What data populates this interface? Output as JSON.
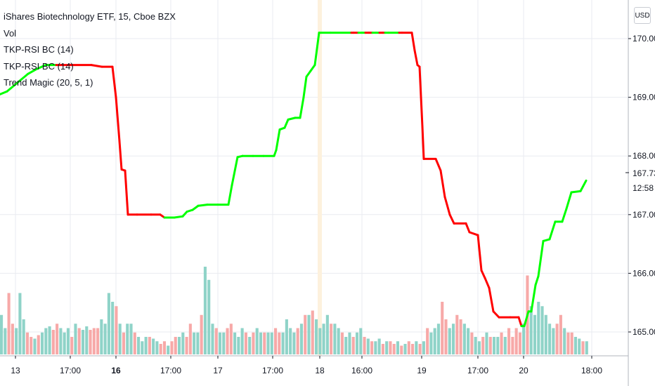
{
  "legend": {
    "title": "iShares Biotechnology ETF, 15, Cboe BZX",
    "vol": "Vol",
    "ind1": "TKP-RSI BC (14)",
    "ind2": "TKP-RSI BC (14)",
    "ind3": "Trend Magic (20, 5, 1)"
  },
  "currency": "USD",
  "price_label": {
    "value": "167.73",
    "countdown": "12:58"
  },
  "colors": {
    "up": "#00ff00",
    "down": "#ff0000",
    "vol_up": "#8fd3c8",
    "vol_down": "#f7a9a8",
    "grid": "#e9ebf0",
    "highlight": "#fdf1dd"
  },
  "chart_data": {
    "type": "line",
    "ylim": [
      164.55,
      170.5
    ],
    "y_ticks": [
      "170.00",
      "169.00",
      "168.00",
      "167.00",
      "166.00",
      "165.00"
    ],
    "x_ticks": [
      {
        "label": "13",
        "bold": false
      },
      {
        "label": "17:00",
        "bold": false
      },
      {
        "label": "16",
        "bold": true
      },
      {
        "label": "17:00",
        "bold": false
      },
      {
        "label": "17",
        "bold": false
      },
      {
        "label": "17:00",
        "bold": false
      },
      {
        "label": "18",
        "bold": false
      },
      {
        "label": "16:00",
        "bold": false
      },
      {
        "label": "19",
        "bold": false
      },
      {
        "label": "17:00",
        "bold": false
      },
      {
        "label": "20",
        "bold": false
      },
      {
        "label": "18:00",
        "bold": false
      }
    ],
    "series": [
      {
        "points": [
          [
            0,
            169.05,
            "up"
          ],
          [
            10,
            169.1,
            "up"
          ],
          [
            20,
            169.2,
            "up"
          ],
          [
            30,
            169.3,
            "up"
          ],
          [
            40,
            169.4,
            "up"
          ],
          [
            52,
            169.48,
            "up"
          ],
          [
            65,
            169.55,
            "up"
          ],
          [
            80,
            169.55,
            "up"
          ],
          [
            100,
            169.55,
            "down"
          ],
          [
            130,
            169.55,
            "down"
          ],
          [
            145,
            169.52,
            "down"
          ],
          [
            160,
            169.52,
            "down"
          ],
          [
            165,
            169.0,
            "down"
          ],
          [
            170,
            168.25,
            "down"
          ],
          [
            173,
            167.77,
            "down"
          ],
          [
            178,
            167.75,
            "down"
          ],
          [
            182,
            167.0,
            "down"
          ],
          [
            195,
            167.0,
            "down"
          ],
          [
            215,
            167.0,
            "down"
          ],
          [
            228,
            167.0,
            "down"
          ],
          [
            234,
            166.95,
            "down"
          ],
          [
            248,
            166.95,
            "up"
          ],
          [
            260,
            166.97,
            "up"
          ],
          [
            266,
            167.05,
            "up"
          ],
          [
            274,
            167.08,
            "up"
          ],
          [
            282,
            167.15,
            "up"
          ],
          [
            295,
            167.17,
            "up"
          ],
          [
            310,
            167.17,
            "up"
          ],
          [
            325,
            167.17,
            "up"
          ],
          [
            330,
            167.5,
            "up"
          ],
          [
            338,
            167.98,
            "up"
          ],
          [
            345,
            168.0,
            "up"
          ],
          [
            360,
            168.0,
            "up"
          ],
          [
            375,
            168.0,
            "up"
          ],
          [
            390,
            168.0,
            "up"
          ],
          [
            393,
            168.1,
            "up"
          ],
          [
            398,
            168.45,
            "up"
          ],
          [
            405,
            168.48,
            "up"
          ],
          [
            410,
            168.62,
            "up"
          ],
          [
            420,
            168.65,
            "up"
          ],
          [
            427,
            168.65,
            "up"
          ],
          [
            432,
            169.0,
            "up"
          ],
          [
            436,
            169.35,
            "up"
          ],
          [
            442,
            169.45,
            "up"
          ],
          [
            448,
            169.55,
            "up"
          ],
          [
            454,
            170.1,
            "up"
          ],
          [
            470,
            170.1,
            "up"
          ],
          [
            500,
            170.1,
            "up"
          ],
          [
            503,
            170.1,
            "down"
          ],
          [
            510,
            170.1,
            "down"
          ],
          [
            515,
            170.1,
            "up"
          ],
          [
            520,
            170.1,
            "up"
          ],
          [
            525,
            170.1,
            "down"
          ],
          [
            530,
            170.1,
            "down"
          ],
          [
            535,
            170.1,
            "up"
          ],
          [
            540,
            170.1,
            "up"
          ],
          [
            545,
            170.1,
            "down"
          ],
          [
            548,
            170.1,
            "down"
          ],
          [
            553,
            170.1,
            "up"
          ],
          [
            568,
            170.1,
            "up"
          ],
          [
            572,
            170.1,
            "down"
          ],
          [
            586,
            170.1,
            "down"
          ],
          [
            590,
            169.8,
            "down"
          ],
          [
            594,
            169.55,
            "down"
          ],
          [
            597,
            169.52,
            "down"
          ],
          [
            601,
            168.5,
            "down"
          ],
          [
            603,
            167.95,
            "down"
          ],
          [
            620,
            167.95,
            "down"
          ],
          [
            627,
            167.75,
            "down"
          ],
          [
            633,
            167.3,
            "down"
          ],
          [
            640,
            167.0,
            "down"
          ],
          [
            646,
            166.85,
            "down"
          ],
          [
            663,
            166.85,
            "down"
          ],
          [
            668,
            166.7,
            "down"
          ],
          [
            680,
            166.65,
            "down"
          ],
          [
            685,
            166.05,
            "down"
          ],
          [
            690,
            165.92,
            "down"
          ],
          [
            696,
            165.75,
            "down"
          ],
          [
            702,
            165.35,
            "down"
          ],
          [
            710,
            165.25,
            "down"
          ],
          [
            726,
            165.25,
            "down"
          ],
          [
            738,
            165.25,
            "down"
          ],
          [
            742,
            165.1,
            "down"
          ],
          [
            746,
            165.1,
            "up"
          ],
          [
            752,
            165.35,
            "up"
          ],
          [
            756,
            165.35,
            "up"
          ],
          [
            762,
            165.8,
            "up"
          ],
          [
            766,
            165.95,
            "up"
          ],
          [
            773,
            166.55,
            "up"
          ],
          [
            782,
            166.58,
            "up"
          ],
          [
            790,
            166.88,
            "up"
          ],
          [
            800,
            166.88,
            "up"
          ],
          [
            806,
            167.1,
            "up"
          ],
          [
            813,
            167.38,
            "up"
          ],
          [
            826,
            167.4,
            "up"
          ],
          [
            834,
            167.58,
            "up"
          ]
        ]
      }
    ],
    "volume": {
      "ymax": 1,
      "bars": [
        [
          0.45,
          "up"
        ],
        [
          0.3,
          "up"
        ],
        [
          0.7,
          "down"
        ],
        [
          0.35,
          "down"
        ],
        [
          0.3,
          "up"
        ],
        [
          0.7,
          "up"
        ],
        [
          0.4,
          "up"
        ],
        [
          0.25,
          "down"
        ],
        [
          0.2,
          "down"
        ],
        [
          0.18,
          "up"
        ],
        [
          0.22,
          "down"
        ],
        [
          0.25,
          "up"
        ],
        [
          0.3,
          "up"
        ],
        [
          0.32,
          "up"
        ],
        [
          0.28,
          "down"
        ],
        [
          0.35,
          "down"
        ],
        [
          0.3,
          "up"
        ],
        [
          0.25,
          "up"
        ],
        [
          0.3,
          "up"
        ],
        [
          0.2,
          "down"
        ],
        [
          0.35,
          "up"
        ],
        [
          0.3,
          "down"
        ],
        [
          0.28,
          "up"
        ],
        [
          0.32,
          "up"
        ],
        [
          0.28,
          "down"
        ],
        [
          0.3,
          "down"
        ],
        [
          0.3,
          "down"
        ],
        [
          0.4,
          "up"
        ],
        [
          0.35,
          "up"
        ],
        [
          0.7,
          "up"
        ],
        [
          0.6,
          "up"
        ],
        [
          0.55,
          "down"
        ],
        [
          0.35,
          "up"
        ],
        [
          0.25,
          "down"
        ],
        [
          0.35,
          "up"
        ],
        [
          0.35,
          "up"
        ],
        [
          0.25,
          "down"
        ],
        [
          0.2,
          "up"
        ],
        [
          0.15,
          "up"
        ],
        [
          0.2,
          "up"
        ],
        [
          0.2,
          "down"
        ],
        [
          0.18,
          "up"
        ],
        [
          0.15,
          "up"
        ],
        [
          0.12,
          "down"
        ],
        [
          0.15,
          "down"
        ],
        [
          0.1,
          "up"
        ],
        [
          0.15,
          "down"
        ],
        [
          0.2,
          "down"
        ],
        [
          0.2,
          "up"
        ],
        [
          0.25,
          "up"
        ],
        [
          0.2,
          "down"
        ],
        [
          0.35,
          "down"
        ],
        [
          0.25,
          "up"
        ],
        [
          0.25,
          "up"
        ],
        [
          0.45,
          "down"
        ],
        [
          1.0,
          "up"
        ],
        [
          0.85,
          "up"
        ],
        [
          0.35,
          "up"
        ],
        [
          0.3,
          "down"
        ],
        [
          0.25,
          "up"
        ],
        [
          0.25,
          "up"
        ],
        [
          0.3,
          "down"
        ],
        [
          0.35,
          "down"
        ],
        [
          0.25,
          "up"
        ],
        [
          0.2,
          "up"
        ],
        [
          0.3,
          "up"
        ],
        [
          0.25,
          "down"
        ],
        [
          0.2,
          "up"
        ],
        [
          0.25,
          "down"
        ],
        [
          0.3,
          "up"
        ],
        [
          0.25,
          "up"
        ],
        [
          0.25,
          "down"
        ],
        [
          0.25,
          "up"
        ],
        [
          0.25,
          "up"
        ],
        [
          0.3,
          "down"
        ],
        [
          0.25,
          "down"
        ],
        [
          0.25,
          "up"
        ],
        [
          0.4,
          "up"
        ],
        [
          0.3,
          "up"
        ],
        [
          0.25,
          "up"
        ],
        [
          0.3,
          "down"
        ],
        [
          0.35,
          "up"
        ],
        [
          0.45,
          "down"
        ],
        [
          0.45,
          "up"
        ],
        [
          0.5,
          "down"
        ],
        [
          0.4,
          "up"
        ],
        [
          0.3,
          "up"
        ],
        [
          0.35,
          "up"
        ],
        [
          0.45,
          "up"
        ],
        [
          0.35,
          "down"
        ],
        [
          0.35,
          "up"
        ],
        [
          0.3,
          "up"
        ],
        [
          0.25,
          "down"
        ],
        [
          0.2,
          "up"
        ],
        [
          0.25,
          "up"
        ],
        [
          0.2,
          "down"
        ],
        [
          0.25,
          "up"
        ],
        [
          0.3,
          "up"
        ],
        [
          0.2,
          "down"
        ],
        [
          0.18,
          "up"
        ],
        [
          0.15,
          "down"
        ],
        [
          0.15,
          "up"
        ],
        [
          0.18,
          "up"
        ],
        [
          0.12,
          "down"
        ],
        [
          0.15,
          "up"
        ],
        [
          0.15,
          "down"
        ],
        [
          0.12,
          "down"
        ],
        [
          0.15,
          "up"
        ],
        [
          0.1,
          "down"
        ],
        [
          0.12,
          "up"
        ],
        [
          0.15,
          "down"
        ],
        [
          0.12,
          "down"
        ],
        [
          0.15,
          "up"
        ],
        [
          0.12,
          "down"
        ],
        [
          0.15,
          "up"
        ],
        [
          0.3,
          "down"
        ],
        [
          0.25,
          "up"
        ],
        [
          0.3,
          "up"
        ],
        [
          0.35,
          "up"
        ],
        [
          0.6,
          "down"
        ],
        [
          0.4,
          "down"
        ],
        [
          0.3,
          "up"
        ],
        [
          0.35,
          "up"
        ],
        [
          0.45,
          "down"
        ],
        [
          0.4,
          "down"
        ],
        [
          0.35,
          "up"
        ],
        [
          0.3,
          "up"
        ],
        [
          0.25,
          "down"
        ],
        [
          0.2,
          "up"
        ],
        [
          0.15,
          "up"
        ],
        [
          0.2,
          "down"
        ],
        [
          0.25,
          "up"
        ],
        [
          0.2,
          "down"
        ],
        [
          0.2,
          "up"
        ],
        [
          0.2,
          "up"
        ],
        [
          0.25,
          "down"
        ],
        [
          0.2,
          "up"
        ],
        [
          0.3,
          "down"
        ],
        [
          0.2,
          "down"
        ],
        [
          0.3,
          "down"
        ],
        [
          0.25,
          "down"
        ],
        [
          0.35,
          "up"
        ],
        [
          0.9,
          "down"
        ],
        [
          0.55,
          "up"
        ],
        [
          0.45,
          "up"
        ],
        [
          0.6,
          "up"
        ],
        [
          0.55,
          "up"
        ],
        [
          0.45,
          "up"
        ],
        [
          0.35,
          "up"
        ],
        [
          0.3,
          "up"
        ],
        [
          0.35,
          "down"
        ],
        [
          0.45,
          "down"
        ],
        [
          0.3,
          "up"
        ],
        [
          0.25,
          "down"
        ],
        [
          0.25,
          "down"
        ],
        [
          0.2,
          "up"
        ],
        [
          0.18,
          "up"
        ],
        [
          0.15,
          "down"
        ],
        [
          0.15,
          "up"
        ]
      ]
    }
  }
}
